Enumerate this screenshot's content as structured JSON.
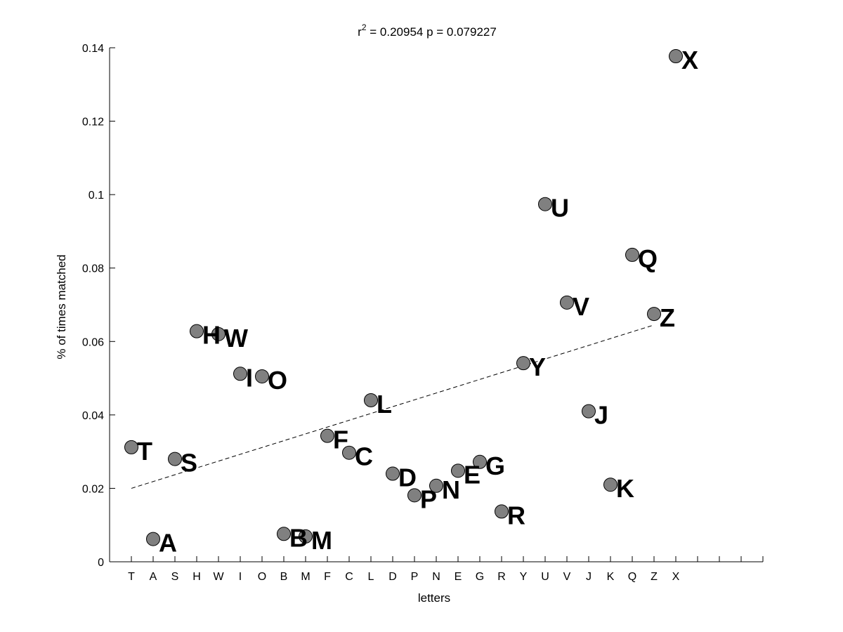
{
  "chart_data": {
    "type": "scatter",
    "title_prefix": "r",
    "title_superscript": "2",
    "title_rest": " = 0.20954 p = 0.079227",
    "xlabel": "letters",
    "ylabel": "% of times matched",
    "categories": [
      "T",
      "A",
      "S",
      "H",
      "W",
      "I",
      "O",
      "B",
      "M",
      "F",
      "C",
      "L",
      "D",
      "P",
      "N",
      "E",
      "G",
      "R",
      "Y",
      "U",
      "V",
      "J",
      "K",
      "Q",
      "Z",
      "X"
    ],
    "values": [
      0.0312,
      0.0062,
      0.028,
      0.0628,
      0.062,
      0.0512,
      0.0505,
      0.0076,
      0.0069,
      0.0343,
      0.0297,
      0.044,
      0.024,
      0.0181,
      0.0207,
      0.0248,
      0.0272,
      0.0137,
      0.0541,
      0.0974,
      0.0706,
      0.041,
      0.021,
      0.0836,
      0.0675,
      0.1377
    ],
    "ylim": [
      0,
      0.14
    ],
    "yticks": [
      0,
      0.02,
      0.04,
      0.06,
      0.08,
      0.1,
      0.12,
      0.14
    ],
    "ytick_labels": [
      "0",
      "0.02",
      "0.04",
      "0.06",
      "0.08",
      "0.1",
      "0.12",
      "0.14"
    ],
    "x_extra_slots": 4,
    "trend_line": {
      "start": 0.02,
      "end": 0.0645
    },
    "grid": false,
    "point_color": "#808080",
    "point_edge_color": "#000000",
    "trend_color": "#000000"
  }
}
